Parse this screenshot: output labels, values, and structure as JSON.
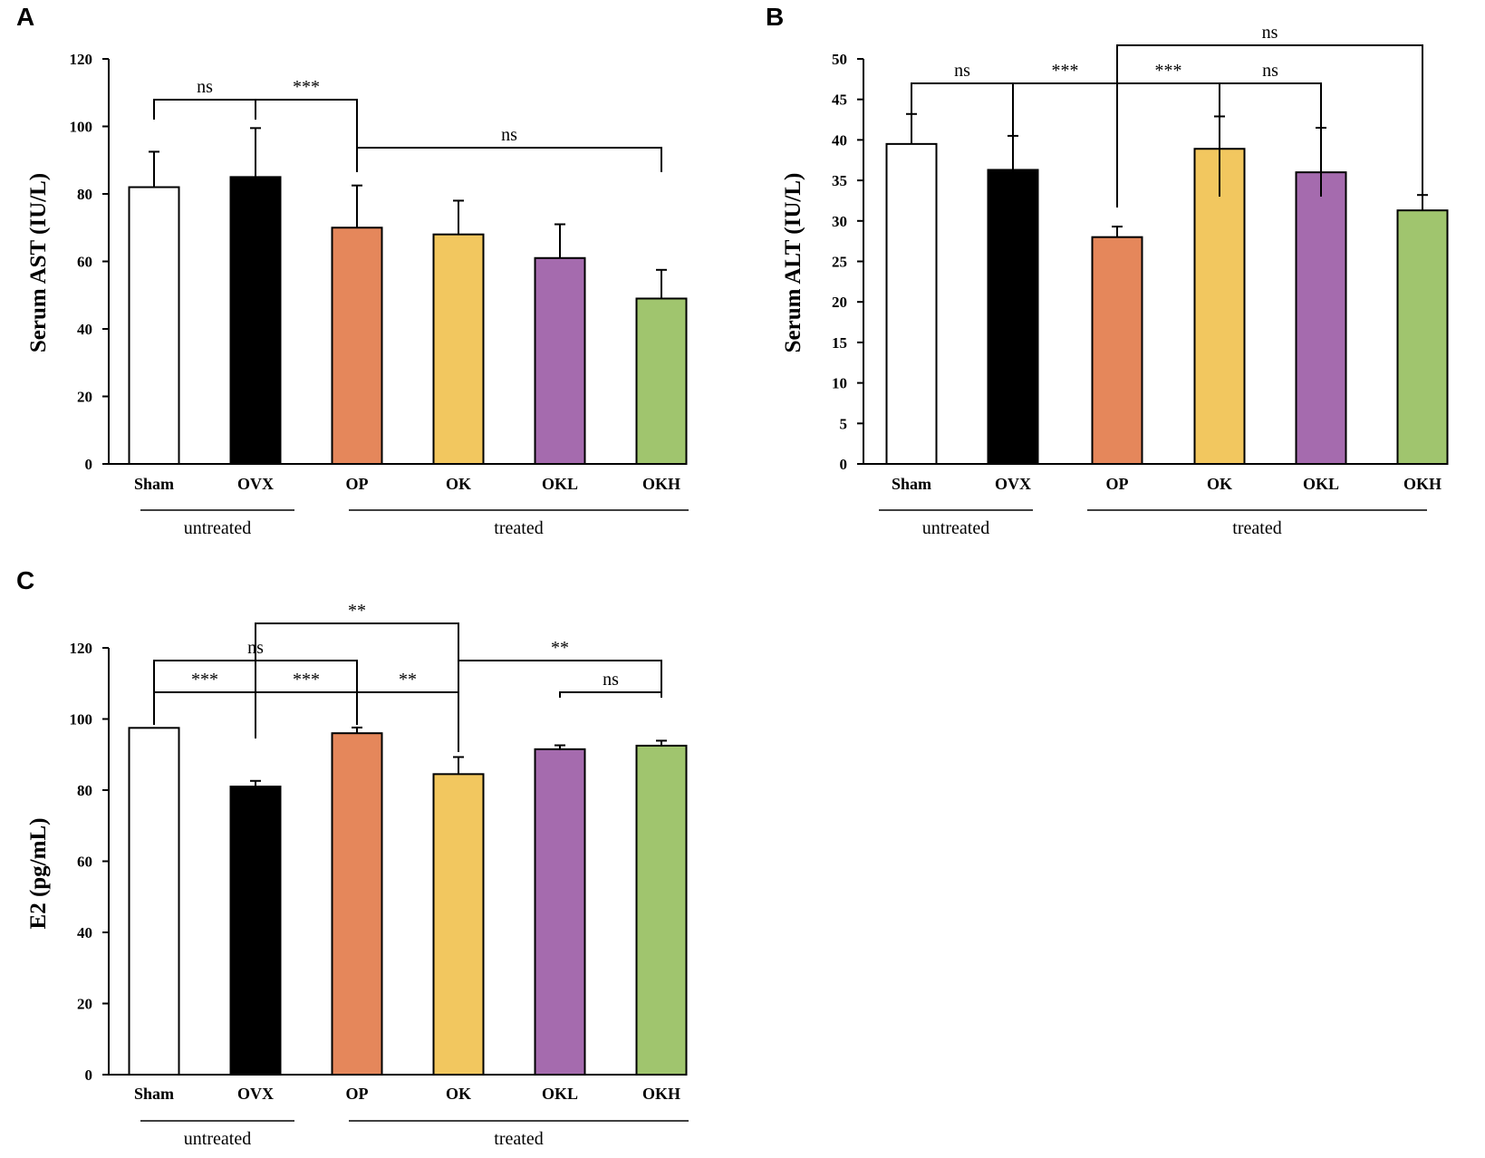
{
  "chart_data": [
    {
      "panel": "A",
      "type": "bar",
      "ylabel": "Serum AST (IU/L)",
      "ylim": [
        0,
        120
      ],
      "yticks": [
        0,
        20,
        40,
        60,
        80,
        100,
        120
      ],
      "categories": [
        "Sham",
        "OVX",
        "OP",
        "OK",
        "OKL",
        "OKH"
      ],
      "values": [
        82,
        85,
        70,
        68,
        61,
        49
      ],
      "errors": [
        10.5,
        14.5,
        12.5,
        10,
        10,
        8.5
      ],
      "groups": [
        {
          "label": "untreated",
          "members": [
            "Sham",
            "OVX"
          ]
        },
        {
          "label": "treated",
          "members": [
            "OP",
            "OK",
            "OKL",
            "OKH"
          ]
        }
      ],
      "significance": [
        {
          "from": "Sham",
          "to": "OVX",
          "label": "ns"
        },
        {
          "from": "OVX",
          "to": "OP",
          "label": "***"
        },
        {
          "from": "OP",
          "to": "OKH",
          "label": "ns"
        }
      ]
    },
    {
      "panel": "B",
      "type": "bar",
      "ylabel": "Serum ALT (IU/L)",
      "ylim": [
        0,
        50
      ],
      "yticks": [
        0,
        5,
        10,
        15,
        20,
        25,
        30,
        35,
        40,
        45,
        50
      ],
      "categories": [
        "Sham",
        "OVX",
        "OP",
        "OK",
        "OKL",
        "OKH"
      ],
      "values": [
        39.5,
        36.3,
        28,
        38.9,
        36,
        31.3
      ],
      "errors": [
        3.7,
        4.2,
        1.3,
        4,
        5.5,
        1.9
      ],
      "groups": [
        {
          "label": "untreated",
          "members": [
            "Sham",
            "OVX"
          ]
        },
        {
          "label": "treated",
          "members": [
            "OP",
            "OK",
            "OKL",
            "OKH"
          ]
        }
      ],
      "significance": [
        {
          "from": "Sham",
          "to": "OVX",
          "label": "ns"
        },
        {
          "from": "OVX",
          "to": "OP",
          "label": "***"
        },
        {
          "from": "OP",
          "to": "OK",
          "label": "***"
        },
        {
          "from": "OK",
          "to": "OKL",
          "label": "ns"
        },
        {
          "from": "OP",
          "to": "OKH",
          "label": "ns"
        }
      ]
    },
    {
      "panel": "C",
      "type": "bar",
      "ylabel": "E2 (pg/mL)",
      "ylim": [
        0,
        120
      ],
      "yticks": [
        0,
        20,
        40,
        60,
        80,
        100,
        120
      ],
      "categories": [
        "Sham",
        "OVX",
        "OP",
        "OK",
        "OKL",
        "OKH"
      ],
      "values": [
        97.5,
        81,
        96,
        84.5,
        91.5,
        92.5
      ],
      "errors": [
        0,
        1.6,
        1.6,
        4.8,
        1.1,
        1.4
      ],
      "groups": [
        {
          "label": "untreated",
          "members": [
            "Sham",
            "OVX"
          ]
        },
        {
          "label": "treated",
          "members": [
            "OP",
            "OK",
            "OKL",
            "OKH"
          ]
        }
      ],
      "significance": [
        {
          "from": "Sham",
          "to": "OVX",
          "label": "***"
        },
        {
          "from": "OVX",
          "to": "OP",
          "label": "***"
        },
        {
          "from": "OP",
          "to": "OK",
          "label": "**"
        },
        {
          "from": "OKL",
          "to": "OKH",
          "label": "ns"
        },
        {
          "from": "Sham",
          "to": "OP",
          "label": "ns"
        },
        {
          "from": "OK",
          "to": "OKH",
          "label": "**"
        },
        {
          "from": "OVX",
          "to": "OK",
          "label": "**"
        }
      ]
    }
  ],
  "bar_colors": [
    "#ffffff",
    "#000000",
    "#e5875b",
    "#f2c75f",
    "#a56bae",
    "#a0c56e"
  ],
  "bar_outline": "#000000"
}
